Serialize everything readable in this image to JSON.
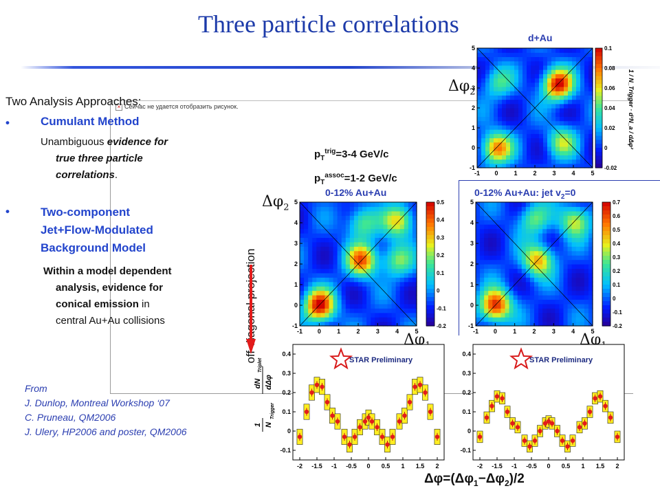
{
  "title": "Three particle correlations",
  "broken_image_text": "Сейчас не удается отобразить рисунок.",
  "left_panel": {
    "heading": "Two Analysis Approaches:",
    "bullet_glyph": "•",
    "cumulant": {
      "label": "Cumulant Method",
      "line1_plain": "Unambiguous ",
      "line1_em": "evidence for",
      "line2": "true three particle",
      "line3": "correlations",
      "line3_tail": "."
    },
    "two_component": {
      "line1": "Two-component",
      "line2": "Jet+Flow-Modulated",
      "line3": "Background Model",
      "desc1": "Within a model dependent",
      "desc2": "analysis, evidence for",
      "desc3_bold": "conical emission",
      "desc3_tail": " in",
      "desc4": "central Au+Au collisions"
    },
    "references": {
      "from": "From",
      "ref1": "J. Dunlop, Montreal Workshop ‘07",
      "ref2": "C. Pruneau, QM2006",
      "ref3": "J. Ulery, HP2006 and poster, QM2006"
    }
  },
  "figure_labels": {
    "dAu": "d+Au",
    "pt_trig_pre": "p",
    "pt_trig_sub": "T",
    "pt_trig_sup": "trig",
    "pt_trig_val": "=3-4 GeV/c",
    "pt_assoc_sup": "assoc",
    "pt_assoc_val": "=1-2 GeV/c",
    "auau_central": "0-12% Au+Au",
    "auau_jet_pre": "0-12% Au+Au: jet v",
    "auau_jet_sub": "2",
    "auau_jet_post": "=0",
    "dphi2": "Δφ",
    "dphi2_sub": "2",
    "dphi1": "Δφ",
    "dphi1_sub": "1",
    "off_diagonal": "off-diagonal projection",
    "star_preliminary": "STAR Preliminary",
    "bottom_axis": "Δφ=(Δφ",
    "bottom_axis_sub1": "1",
    "bottom_axis_mid": "−Δφ",
    "bottom_axis_sub2": "2",
    "bottom_axis_post": ")/2",
    "ylabel_frac_num": "dN",
    "ylabel_frac_den": "dΔφ",
    "ylabel_sub": "Triplet",
    "ylabel_one": "1",
    "ylabel_ntrig": "N",
    "ylabel_ntrig_sub": "Trigger",
    "cb_ylabel": "1 / N_Trigger · d²N_a / dΔφ²"
  },
  "colors": {
    "title_blue": "#1c3aa9",
    "bullet_blue": "#2244cc",
    "arrow_red": "#e31b1b",
    "hist_yellow": "#ffee22",
    "marker_red": "#e31b1b"
  },
  "chart_data": [
    {
      "type": "heatmap",
      "panel": "d+Au",
      "xlabel": "",
      "ylabel": "Δφ2",
      "xticks": [
        "-1",
        "0",
        "1",
        "2",
        "3",
        "4",
        "5"
      ],
      "yticks": [
        "-1",
        "0",
        "1",
        "2",
        "3",
        "4",
        "5"
      ],
      "colorbar_ticks": [
        "0.1",
        "0.08",
        "0.06",
        "0.04",
        "0.02",
        "0",
        "-0.02"
      ],
      "colorbar_range": [
        -0.02,
        0.1
      ],
      "hotspots": [
        {
          "x": 0,
          "y": 0,
          "value": 0.08
        },
        {
          "x": 3.2,
          "y": 3.2,
          "value": 0.1
        },
        {
          "x": 3.4,
          "y": 0.3,
          "value": 0.05
        },
        {
          "x": 0.1,
          "y": 3.3,
          "value": 0.04
        }
      ]
    },
    {
      "type": "heatmap",
      "panel": "0-12% Au+Au",
      "xlabel": "Δφ1",
      "ylabel": "Δφ2",
      "xticks": [
        "-1",
        "0",
        "1",
        "2",
        "3",
        "4",
        "5"
      ],
      "yticks": [
        "-1",
        "0",
        "1",
        "2",
        "3",
        "4",
        "5"
      ],
      "colorbar_ticks": [
        "0.5",
        "0.4",
        "0.3",
        "0.2",
        "0.1",
        "0",
        "-0.1",
        "-0.2"
      ],
      "colorbar_range": [
        -0.2,
        0.5
      ],
      "hotspots": [
        {
          "x": 0,
          "y": 0,
          "value": 0.5
        },
        {
          "x": 2.2,
          "y": 2.2,
          "value": 0.4
        },
        {
          "x": 4.1,
          "y": 4.1,
          "value": 0.3
        },
        {
          "x": 4.0,
          "y": 2.2,
          "value": 0.2
        },
        {
          "x": 2.2,
          "y": 4.0,
          "value": 0.2
        }
      ]
    },
    {
      "type": "heatmap",
      "panel": "0-12% Au+Au: jet v2=0",
      "xlabel": "Δφ1",
      "ylabel": "",
      "xticks": [
        "-1",
        "0",
        "1",
        "2",
        "3",
        "4",
        "5"
      ],
      "yticks": [
        "-1",
        "0",
        "1",
        "2",
        "3",
        "4",
        "5"
      ],
      "colorbar_ticks": [
        "0.7",
        "0.6",
        "0.5",
        "0.4",
        "0.3",
        "0.2",
        "0.1",
        "0",
        "-0.1",
        "-0.2"
      ],
      "colorbar_range": [
        -0.2,
        0.7
      ],
      "hotspots": [
        {
          "x": 0,
          "y": 0,
          "value": 0.7
        },
        {
          "x": 2.2,
          "y": 2.2,
          "value": 0.5
        },
        {
          "x": 4.1,
          "y": 4.1,
          "value": 0.4
        },
        {
          "x": 2.0,
          "y": 4.2,
          "value": 0.3
        }
      ]
    },
    {
      "type": "bar",
      "panel": "off-diagonal projection, 0-12% Au+Au",
      "xlabel": "Δφ=(Δφ1−Δφ2)/2",
      "ylabel": "1/N_Trigger · dN_Triplet/dΔφ",
      "xticks": [
        "-2",
        "-1.5",
        "-1",
        "-0.5",
        "0",
        "0.5",
        "1",
        "1.5",
        "2"
      ],
      "yticks": [
        "-0.1",
        "0",
        "0.1",
        "0.2",
        "0.3",
        "0.4"
      ],
      "ylim": [
        -0.15,
        0.45
      ],
      "x": [
        -2.0,
        -1.8,
        -1.65,
        -1.5,
        -1.35,
        -1.2,
        -1.05,
        -0.9,
        -0.7,
        -0.55,
        -0.4,
        -0.25,
        -0.1,
        0.0,
        0.1,
        0.25,
        0.4,
        0.55,
        0.7,
        0.9,
        1.05,
        1.2,
        1.35,
        1.5,
        1.65,
        1.8,
        2.0
      ],
      "values": [
        -0.03,
        0.1,
        0.2,
        0.24,
        0.23,
        0.15,
        0.08,
        0.05,
        -0.03,
        -0.07,
        -0.03,
        0.02,
        0.05,
        0.07,
        0.05,
        0.02,
        -0.03,
        -0.07,
        -0.03,
        0.05,
        0.08,
        0.15,
        0.23,
        0.24,
        0.2,
        0.1,
        -0.03
      ],
      "band_halfwidth": 0.04
    },
    {
      "type": "bar",
      "panel": "off-diagonal projection, 0-12% Au+Au jet v2=0",
      "xlabel": "Δφ=(Δφ1−Δφ2)/2",
      "ylabel": "",
      "xticks": [
        "-2",
        "-1.5",
        "-1",
        "-0.5",
        "0",
        "0.5",
        "1",
        "1.5",
        "2"
      ],
      "yticks": [
        "-0.1",
        "0",
        "0.1",
        "0.2",
        "0.3",
        "0.4"
      ],
      "ylim": [
        -0.15,
        0.45
      ],
      "x": [
        -2.0,
        -1.8,
        -1.65,
        -1.5,
        -1.35,
        -1.2,
        -1.05,
        -0.9,
        -0.7,
        -0.55,
        -0.4,
        -0.25,
        -0.1,
        0.0,
        0.1,
        0.25,
        0.4,
        0.55,
        0.7,
        0.9,
        1.05,
        1.2,
        1.35,
        1.5,
        1.65,
        1.8,
        2.0
      ],
      "values": [
        -0.03,
        0.07,
        0.13,
        0.18,
        0.17,
        0.1,
        0.04,
        0.02,
        -0.05,
        -0.08,
        -0.05,
        0.0,
        0.04,
        0.05,
        0.04,
        0.0,
        -0.05,
        -0.08,
        -0.05,
        0.02,
        0.04,
        0.1,
        0.17,
        0.18,
        0.13,
        0.07,
        -0.03
      ],
      "band_halfwidth": 0.03
    }
  ]
}
